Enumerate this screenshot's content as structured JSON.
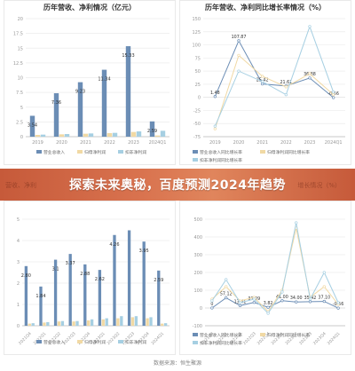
{
  "banner": {
    "title": "探索未来奥秘，百度预测2024年趋势",
    "left_fragment": "营收、净利",
    "right_fragment": "增长情况（%）"
  },
  "footer": {
    "source": "数据来源：恒生聚源"
  },
  "colors": {
    "revenue": "#6b8db5",
    "net_profit": "#f1d9a4",
    "deducted_profit": "#a6cfe2",
    "grid": "#ececec",
    "axis_text": "#999999",
    "label_text": "#333333"
  },
  "chart_data": [
    {
      "type": "bar",
      "title": "历年营收、净利情况（亿元）",
      "categories": [
        "2019",
        "2020",
        "2021",
        "2022",
        "2023",
        "2024Q1"
      ],
      "ylim": [
        0,
        20
      ],
      "yticks": [
        "0",
        "2.5",
        "5",
        "7.5",
        "10",
        "12.5",
        "15",
        "17.5",
        "20"
      ],
      "series": [
        {
          "name": "营业总收入",
          "values": [
            3.54,
            7.36,
            9.23,
            11.34,
            15.33,
            2.59
          ],
          "labels": [
            "3.54",
            "7.36",
            "9.23",
            "11.34",
            "15.33",
            "2.59"
          ]
        },
        {
          "name": "归母净利润",
          "values": [
            0.3,
            0.4,
            0.5,
            0.6,
            0.8,
            0.2
          ]
        },
        {
          "name": "扣非净利润",
          "values": [
            0.35,
            0.45,
            0.55,
            0.65,
            0.9,
            1.0
          ]
        }
      ],
      "legend": [
        "营业总收入",
        "归母净利润",
        "扣非净利润"
      ]
    },
    {
      "type": "line",
      "title": "历年营收、净利同比增长率情况（%）",
      "categories": [
        "2019",
        "2020",
        "2021",
        "2022",
        "2023",
        "2024Q1"
      ],
      "ylim": [
        -75,
        150
      ],
      "yticks": [
        "-75",
        "-50",
        "-25",
        "0",
        "25",
        "50",
        "75",
        "100",
        "125",
        "150"
      ],
      "series": [
        {
          "name": "营业总收入同比增长率",
          "values": [
            1.48,
            107.87,
            25.42,
            21.61,
            36.88,
            -0.56
          ],
          "labels": [
            "1.48",
            "107.87",
            "25.42",
            "21.61",
            "36.88",
            "-0.56"
          ]
        },
        {
          "name": "归母净利润同比增长率",
          "values": [
            -60,
            80,
            40,
            20,
            45,
            5
          ]
        },
        {
          "name": "扣非净利润同比增长率",
          "values": [
            -55,
            50,
            30,
            5,
            135,
            10
          ]
        }
      ],
      "legend": [
        "营业总收入同比增长率",
        "归母净利润同比增长率",
        "扣非净利润同比增长率"
      ]
    },
    {
      "type": "bar",
      "title": "",
      "categories": [
        "2021Q4",
        "2022Q1",
        "2022Q2",
        "2022Q3",
        "2022Q4",
        "2023Q1",
        "2023Q2",
        "2023Q3",
        "2023Q4",
        "2024Q1"
      ],
      "ylim": [
        0,
        5
      ],
      "yticks": [
        "0",
        "1",
        "2",
        "3",
        "4",
        "5"
      ],
      "series": [
        {
          "name": "营业总收入",
          "values": [
            2.8,
            1.84,
            3.1,
            3.37,
            2.88,
            2.62,
            4.26,
            4.48,
            3.95,
            2.59
          ],
          "labels": [
            "2.80",
            "1.84",
            "3.1",
            "3.37",
            "2.88",
            "2.62",
            "4.26",
            "",
            "3.95",
            "2.59"
          ]
        },
        {
          "name": "归母净利润",
          "values": [
            0.1,
            0.15,
            0.2,
            0.2,
            0.25,
            0.3,
            0.35,
            0.4,
            0.35,
            0.1
          ]
        },
        {
          "name": "扣非净利润",
          "values": [
            0.12,
            0.17,
            0.22,
            0.22,
            0.3,
            0.35,
            0.45,
            0.45,
            0.4,
            0.12
          ]
        }
      ],
      "legend": [
        "营业总收入",
        "归母净利润",
        "扣非净利润"
      ]
    },
    {
      "type": "line",
      "title": "",
      "categories": [
        "2021Q4",
        "2022Q1",
        "2022Q2",
        "2022Q3",
        "2022Q4",
        "2023Q1",
        "2023Q2",
        "2023Q3",
        "2023Q4",
        "2024Q1"
      ],
      "ylim": [
        -100,
        500
      ],
      "yticks": [
        "-100",
        "0",
        "100",
        "200",
        "300",
        "400",
        "500"
      ],
      "series": [
        {
          "name": "营业总收入同比增长率",
          "values": [
            0,
            57.12,
            13.41,
            31.09,
            3.82,
            41.0,
            34.0,
            35.42,
            37.1,
            -0.56
          ],
          "labels": [
            "0",
            "57.12",
            "13.41",
            "31.09",
            "3.82",
            "41.00",
            "34.00",
            "35.42",
            "37.10",
            "-0.56"
          ]
        },
        {
          "name": "归母净利润同比增长率",
          "values": [
            50,
            120,
            40,
            60,
            -20,
            100,
            450,
            60,
            120,
            20
          ]
        },
        {
          "name": "扣非净利润同比增长率",
          "values": [
            40,
            160,
            30,
            50,
            -30,
            90,
            480,
            50,
            200,
            30
          ]
        }
      ],
      "legend": [
        "营业总收入同比增长率",
        "归母净利润同比增长率",
        "扣非净利润同比增长率"
      ]
    }
  ]
}
